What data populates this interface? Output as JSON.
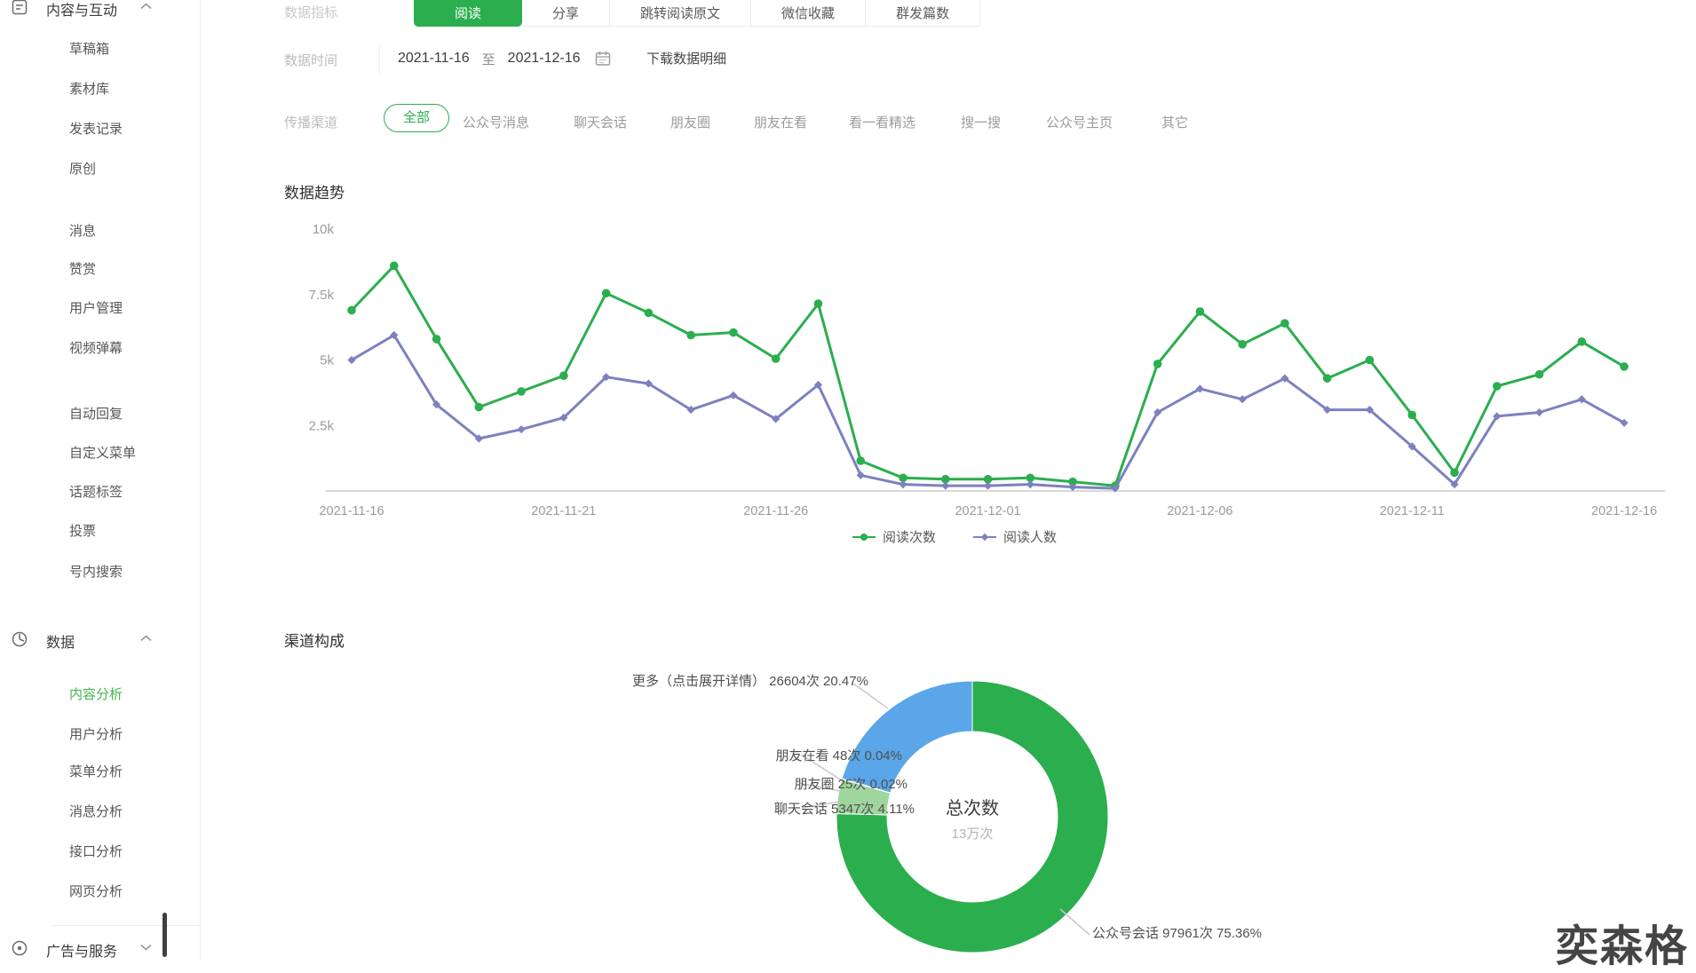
{
  "colors": {
    "accent_green": "#2bae4e",
    "sidebar_active_green": "#44b549",
    "line_green": "#2bae4e",
    "line_purple": "#7d81c0",
    "donut_green": "#2bae4e",
    "donut_light_green": "#9ed69d",
    "donut_blue": "#5aa6e8",
    "axis_gray": "#d8d8d8",
    "tick_gray": "#9b9b9b"
  },
  "sidebar": {
    "sections": [
      {
        "label": "内容与互动",
        "icon": "content-icon",
        "chevron": "up",
        "items": [
          "草稿箱",
          "素材库",
          "发表记录",
          "原创",
          "消息",
          "赞赏",
          "用户管理",
          "视频弹幕",
          "自动回复",
          "自定义菜单",
          "话题标签",
          "投票",
          "号内搜索"
        ]
      },
      {
        "label": "数据",
        "icon": "data-icon",
        "chevron": "up",
        "active_item": "内容分析",
        "items": [
          "内容分析",
          "用户分析",
          "菜单分析",
          "消息分析",
          "接口分析",
          "网页分析"
        ]
      },
      {
        "label": "广告与服务",
        "icon": "ads-icon",
        "chevron": "down",
        "items": []
      }
    ]
  },
  "filters": {
    "metrics_label": "数据指标",
    "metrics_tabs": [
      "阅读",
      "分享",
      "跳转阅读原文",
      "微信收藏",
      "群发篇数"
    ],
    "active_tab": "阅读",
    "time_label": "数据时间",
    "date_start": "2021-11-16",
    "date_separator": "至",
    "date_end": "2021-12-16",
    "download_link": "下载数据明细",
    "channel_label": "传播渠道",
    "channels": [
      "全部",
      "公众号消息",
      "聊天会话",
      "朋友圈",
      "朋友在看",
      "看一看精选",
      "搜一搜",
      "公众号主页",
      "其它"
    ],
    "active_channel": "全部"
  },
  "trend": {
    "title": "数据趋势"
  },
  "composition": {
    "title": "渠道构成",
    "center_label": "总次数",
    "center_value": "13万次",
    "unit": "次"
  },
  "watermark": "奕森格",
  "chart_data": [
    {
      "type": "line",
      "title": "数据趋势",
      "x": [
        "2021-11-16",
        "2021-11-17",
        "2021-11-18",
        "2021-11-19",
        "2021-11-20",
        "2021-11-21",
        "2021-11-22",
        "2021-11-23",
        "2021-11-24",
        "2021-11-25",
        "2021-11-26",
        "2021-11-27",
        "2021-11-28",
        "2021-11-29",
        "2021-11-30",
        "2021-12-01",
        "2021-12-02",
        "2021-12-03",
        "2021-12-04",
        "2021-12-05",
        "2021-12-06",
        "2021-12-07",
        "2021-12-08",
        "2021-12-09",
        "2021-12-10",
        "2021-12-11",
        "2021-12-12",
        "2021-12-13",
        "2021-12-14",
        "2021-12-15",
        "2021-12-16"
      ],
      "x_tick_labels": [
        "2021-11-16",
        "2021-11-21",
        "2021-11-26",
        "2021-12-01",
        "2021-12-06",
        "2021-12-11",
        "2021-12-16"
      ],
      "ylim": [
        0,
        10000
      ],
      "y_ticks": [
        2500,
        5000,
        7500,
        10000
      ],
      "y_tick_labels": [
        "2.5k",
        "5k",
        "7.5k",
        "10k"
      ],
      "grid": false,
      "legend_position": "bottom",
      "series": [
        {
          "name": "阅读次数",
          "color": "#2bae4e",
          "marker": "circle",
          "values": [
            6900,
            8600,
            5800,
            3200,
            3800,
            4400,
            7550,
            6800,
            5950,
            6050,
            5050,
            7150,
            1150,
            500,
            450,
            450,
            500,
            350,
            200,
            4850,
            6850,
            5600,
            6400,
            4300,
            5000,
            2900,
            700,
            4000,
            4450,
            5700,
            4750
          ]
        },
        {
          "name": "阅读人数",
          "color": "#7d81c0",
          "marker": "diamond",
          "values": [
            5000,
            5950,
            3300,
            2000,
            2350,
            2800,
            4350,
            4100,
            3100,
            3650,
            2750,
            4050,
            600,
            250,
            200,
            200,
            250,
            150,
            100,
            3000,
            3900,
            3500,
            4300,
            3100,
            3100,
            1700,
            250,
            2850,
            3000,
            3500,
            2600
          ]
        }
      ]
    },
    {
      "type": "pie",
      "title": "渠道构成",
      "donut": true,
      "center_label": "总次数",
      "center_value": "13万次",
      "unit": "次",
      "slices": [
        {
          "name": "公众号会话",
          "count": 97961,
          "pct": 75.36,
          "color": "#2bae4e"
        },
        {
          "name": "聊天会话",
          "count": 5347,
          "pct": 4.11,
          "color": "#9ed69d"
        },
        {
          "name": "朋友圈",
          "count": 25,
          "pct": 0.02,
          "color": "#f2a93b"
        },
        {
          "name": "朋友在看",
          "count": 48,
          "pct": 0.04,
          "color": "#e36a5c"
        },
        {
          "name": "更多（点击展开详情）",
          "count": 26604,
          "pct": 20.47,
          "color": "#5aa6e8"
        }
      ]
    }
  ]
}
